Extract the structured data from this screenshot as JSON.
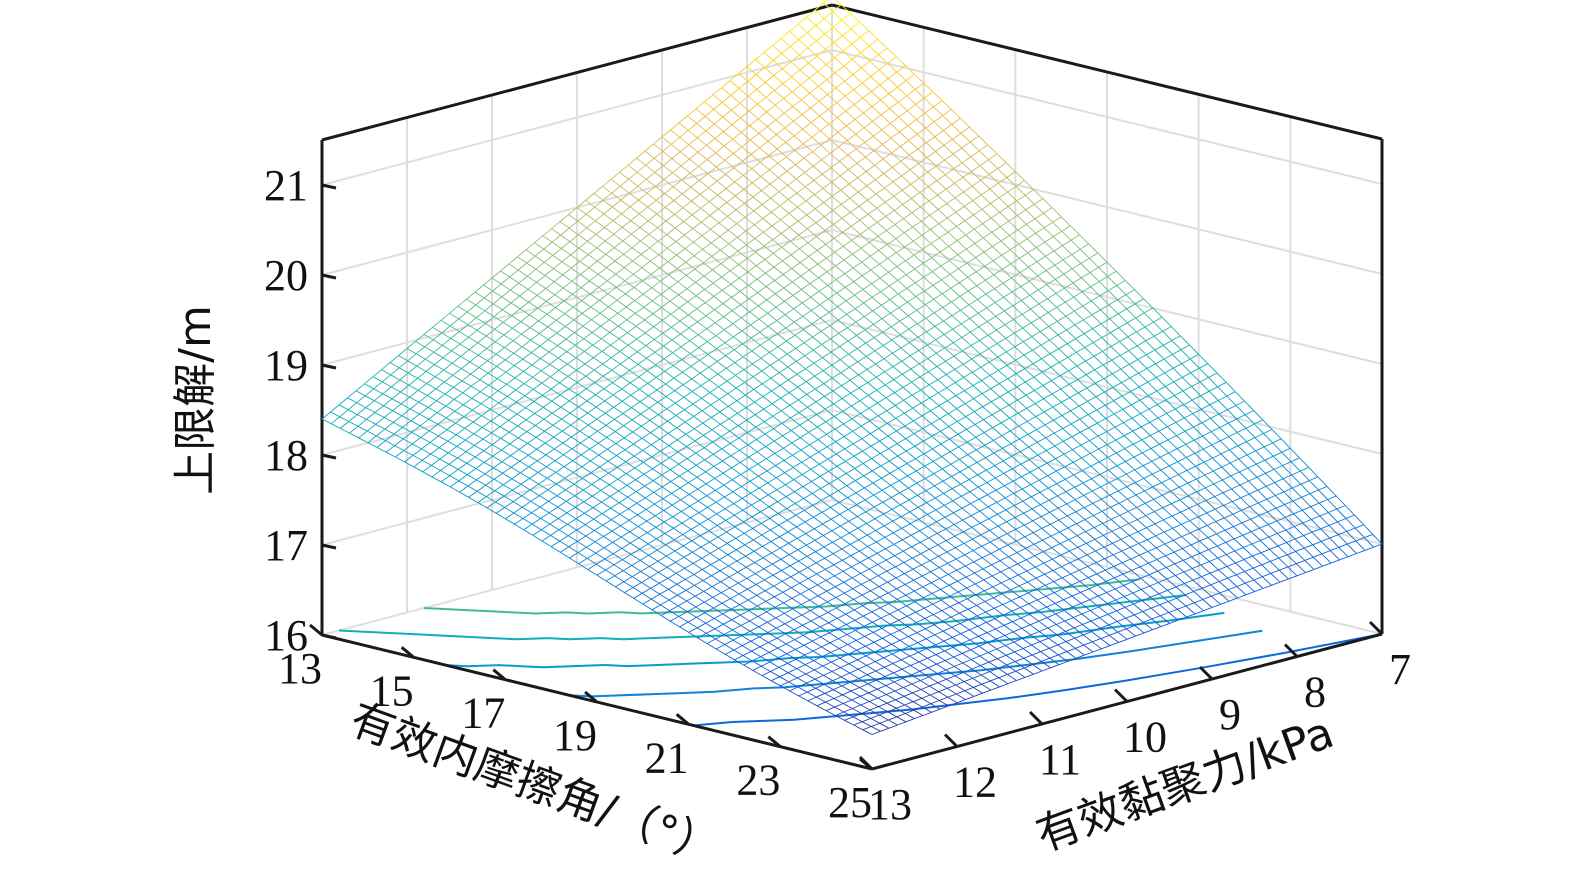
{
  "chart_data": {
    "type": "surface",
    "title": "",
    "xlabel": "有效内摩擦角/（°）",
    "ylabel": "有效黏聚力/kPa",
    "zlabel": "上限解/m",
    "x_ticks": [
      "13",
      "15",
      "17",
      "19",
      "21",
      "23",
      "25"
    ],
    "y_ticks": [
      "13",
      "12",
      "11",
      "10",
      "9",
      "8",
      "7"
    ],
    "z_ticks": [
      "16",
      "17",
      "18",
      "19",
      "20",
      "21"
    ],
    "xlim": [
      13,
      25
    ],
    "ylim": [
      7,
      13
    ],
    "zlim": [
      16,
      21.5
    ],
    "grid": true,
    "colormap": "parula",
    "corner_values": [
      {
        "phi": 13,
        "c": 13,
        "value": 18.4
      },
      {
        "phi": 25,
        "c": 13,
        "value": 16.4
      },
      {
        "phi": 13,
        "c": 7,
        "value": 21.6
      },
      {
        "phi": 25,
        "c": 7,
        "value": 17.0
      }
    ],
    "base_contours": true
  }
}
